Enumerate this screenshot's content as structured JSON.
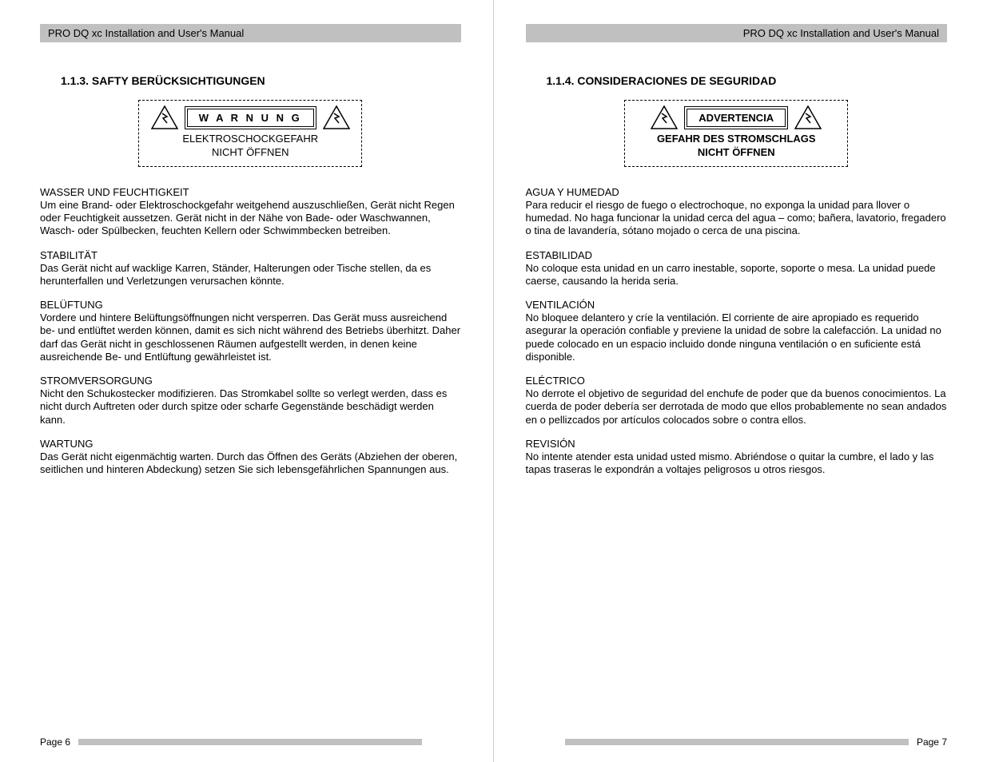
{
  "doc_title": "PRO DQ xc Installation and User's Manual",
  "colors": {
    "header_bg": "#c0c0c0",
    "text": "#000000",
    "page_bg": "#ffffff"
  },
  "typography": {
    "body_fontsize_pt": 10,
    "heading_fontsize_pt": 11,
    "font_family": "Arial"
  },
  "left_page": {
    "number_label": "Page 6",
    "section_title": "1.1.3. SAFTY BERÜCKSICHTIGUNGEN",
    "warning": {
      "label": "W A R N U N G",
      "label_letter_spaced": true,
      "sub1": "ELEKTROSCHOCKGEFAHR",
      "sub2": "NICHT ÖFFNEN",
      "sub_bold": false
    },
    "paragraphs": [
      {
        "heading": "WASSER UND FEUCHTIGKEIT",
        "body": "Um eine Brand- oder Elektroschockgefahr weitgehend auszuschließen, Gerät nicht Regen oder Feuchtigkeit aussetzen.  Gerät nicht in der Nähe von Bade- oder Waschwannen, Wasch- oder Spülbecken, feuchten Kellern oder Schwimmbecken betreiben."
      },
      {
        "heading": "STABILITÄT",
        "body": "Das Gerät nicht auf wacklige Karren, Ständer, Halterungen oder Tische stellen, da es herunterfallen und Verletzungen verursachen könnte."
      },
      {
        "heading": "BELÜFTUNG",
        "body": "Vordere und hintere Belüftungsöffnungen nicht versperren.  Das Gerät muss ausreichend be- und entlüftet werden können, damit es sich nicht während des Betriebs überhitzt.  Daher darf das Gerät nicht in geschlossenen Räumen aufgestellt werden, in denen keine ausreichende Be- und Entlüftung gewährleistet ist."
      },
      {
        "heading": "STROMVERSORGUNG",
        "body": "Nicht den Schukostecker modifizieren.  Das Stromkabel sollte so verlegt werden, dass es nicht durch Auftreten oder durch spitze oder scharfe Gegenstände beschädigt werden kann."
      },
      {
        "heading": "WARTUNG",
        "body": "Das Gerät nicht eigenmächtig warten.  Durch das Öffnen des Geräts (Abziehen der oberen, seitlichen und hinteren Abdeckung) setzen Sie sich lebensgefährlichen Spannungen aus."
      }
    ]
  },
  "right_page": {
    "number_label": "Page 7",
    "section_title": "1.1.4. CONSIDERACIONES DE SEGURIDAD",
    "warning": {
      "label": "ADVERTENCIA",
      "label_letter_spaced": false,
      "sub1": "GEFAHR DES STROMSCHLAGS",
      "sub2": "NICHT ÖFFNEN",
      "sub_bold": true
    },
    "paragraphs": [
      {
        "heading": "AGUA Y HUMEDAD",
        "body": "Para reducir el riesgo de fuego o electrochoque, no exponga la unidad para llover o humedad. No haga funcionar la unidad cerca del agua – como; bañera, lavatorio, fregadero o tina de lavandería, sótano mojado o cerca de una piscina."
      },
      {
        "heading": "ESTABILIDAD",
        "body": "No coloque esta unidad en un carro inestable, soporte, soporte o mesa. La unidad puede caerse, causando la herida seria."
      },
      {
        "heading": "VENTILACIÓN",
        "body": "No bloquee delantero y críe la ventilación. El corriente de aire apropiado es requerido asegurar la operación confiable y previene la unidad de sobre la calefacción. La unidad no puede colocado en un espacio incluido donde ninguna ventilación o en suficiente está disponible."
      },
      {
        "heading": "ELÉCTRICO",
        "body": "No derrote el objetivo de seguridad del enchufe de poder que da buenos conocimientos. La cuerda de poder debería ser derrotada de modo que ellos probablemente no sean andados en o pellizcados por artículos colocados sobre o contra ellos."
      },
      {
        "heading": "REVISIÓN",
        "body": "No intente atender esta unidad usted mismo. Abriéndose o quitar la cumbre, el lado y las tapas traseras le expondrán a voltajes peligrosos u otros riesgos."
      }
    ]
  }
}
